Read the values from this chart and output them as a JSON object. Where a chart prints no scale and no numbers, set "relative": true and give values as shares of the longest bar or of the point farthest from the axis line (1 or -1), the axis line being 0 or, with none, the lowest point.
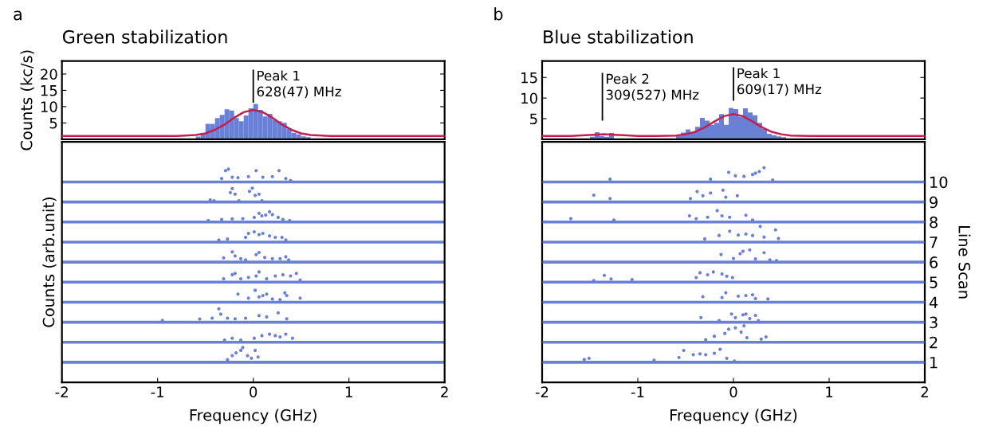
{
  "chart_data": [
    {
      "type": "histogram",
      "title": "Green stabilization",
      "ylabel": "Counts (kc/s)",
      "color": "#6a80d4",
      "bins": [
        -0.65,
        -0.6,
        -0.55,
        -0.5,
        -0.45,
        -0.4,
        -0.35,
        -0.3,
        -0.25,
        -0.2,
        -0.15,
        -0.1,
        -0.05,
        0,
        0.05,
        0.1,
        0.15,
        0.2,
        0.25,
        0.3,
        0.35,
        0.4,
        0.45,
        0.5,
        0.55,
        0.6
      ],
      "values": [
        null,
        0.8,
        1.8,
        4.7,
        4.7,
        6.5,
        7.5,
        9.2,
        8.8,
        6.5,
        5.5,
        7.3,
        9.5,
        10.8,
        9.0,
        7.0,
        7.8,
        6.0,
        5.5,
        5.0,
        3.2,
        2.0,
        1.5,
        0.9,
        0.6
      ],
      "series": [
        {
          "type": "line",
          "color": "#c41e52",
          "x": [
            -2,
            -1,
            -0.8,
            -0.6,
            -0.5,
            -0.4,
            -0.3,
            -0.2,
            -0.1,
            0,
            0.1,
            0.2,
            0.3,
            0.4,
            0.5,
            0.6,
            0.8,
            1,
            2
          ],
          "values": [
            1,
            1,
            1.0,
            1.3,
            1.8,
            2.9,
            4.5,
            6.6,
            8.3,
            9.0,
            8.3,
            6.6,
            4.5,
            2.9,
            1.8,
            1.3,
            1.0,
            1,
            1
          ]
        }
      ],
      "xlim": [
        -2,
        2
      ],
      "ylim": [
        0,
        24
      ],
      "yticks": [
        5,
        10,
        15,
        20
      ],
      "tick_labels": "y",
      "annotations": [
        "a",
        "Peak 1\n628(47) MHz"
      ]
    },
    {
      "type": "scatter",
      "xlabel": "Frequency (GHz)",
      "ylabel": "Counts (arb.unit)",
      "marker": "circle",
      "relative": true,
      "series": [
        {
          "color": "#6a80d4",
          "x": [
            -0.33,
            -0.29,
            -0.26,
            -0.22,
            -0.16,
            -0.05,
            0.03,
            0.1,
            0.2,
            0.27,
            0.34,
            0.39
          ],
          "values": [
            0.956,
            0.993,
            1,
            0.962,
            0.96,
            0.965,
            0.993,
            0.962,
            0.965,
            0.993,
            0.956,
            0.947
          ]
        },
        {
          "color": "#6a80d4",
          "x": [
            -0.45,
            -0.41,
            -0.24,
            -0.22,
            -0.19,
            -0.15,
            -0.04,
            -0.01,
            0.02,
            0.06,
            0.09
          ],
          "values": [
            0.856,
            0.852,
            0.89,
            0.909,
            0.883,
            0.852,
            0.896,
            0.911,
            0.877,
            0.883,
            0.852
          ]
        },
        {
          "color": "#6a80d4",
          "x": [
            -0.47,
            -0.33,
            -0.22,
            -0.11,
            0.01,
            0.06,
            0.09,
            0.13,
            0.17,
            0.2,
            0.26,
            0.31,
            0.38
          ],
          "values": [
            0.759,
            0.764,
            0.767,
            0.768,
            0.774,
            0.793,
            0.781,
            0.785,
            0.8,
            0.787,
            0.774,
            0.764,
            0.759
          ]
        },
        {
          "color": "#6a80d4",
          "x": [
            -0.36,
            -0.27,
            -0.08,
            -0.05,
            0.01,
            0.06,
            0.1,
            0.17,
            0.23,
            0.3,
            0.34
          ],
          "values": [
            0.668,
            0.672,
            0.68,
            0.699,
            0.706,
            0.693,
            0.699,
            0.687,
            0.68,
            0.68,
            0.668
          ]
        },
        {
          "color": "#6a80d4",
          "x": [
            -0.31,
            -0.22,
            -0.19,
            -0.13,
            -0.08,
            0.03,
            0.06,
            0.12,
            0.2,
            0.28,
            0.34,
            0.37
          ],
          "values": [
            0.584,
            0.612,
            0.593,
            0.58,
            0.574,
            0.599,
            0.609,
            0.586,
            0.58,
            0.58,
            0.589,
            0.574
          ]
        },
        {
          "color": "#6a80d4",
          "x": [
            -0.31,
            -0.22,
            -0.19,
            -0.13,
            -0.05,
            0.03,
            0.06,
            0.14,
            0.23,
            0.31,
            0.39,
            0.45,
            0.49
          ],
          "values": [
            0.486,
            0.505,
            0.511,
            0.486,
            0.492,
            0.499,
            0.518,
            0.486,
            0.499,
            0.505,
            0.499,
            0.511,
            0.48
          ]
        },
        {
          "color": "#6a80d4",
          "x": [
            -0.16,
            -0.05,
            0.02,
            0.06,
            0.1,
            0.14,
            0.2,
            0.28,
            0.33,
            0.35,
            0.49
          ],
          "values": [
            0.414,
            0.395,
            0.432,
            0.401,
            0.407,
            0.414,
            0.391,
            0.388,
            0.42,
            0.407,
            0.395
          ]
        },
        {
          "color": "#6a80d4",
          "x": [
            -0.95,
            -0.56,
            -0.43,
            -0.36,
            -0.34,
            -0.27,
            -0.19,
            -0.08,
            0.06,
            0.14,
            0.26,
            0.35
          ],
          "values": [
            0.29,
            0.297,
            0.301,
            0.345,
            0.32,
            0.301,
            0.298,
            0.301,
            0.313,
            0.307,
            0.326,
            0.298
          ]
        },
        {
          "color": "#6a80d4",
          "x": [
            -0.3,
            -0.22,
            -0.13,
            0.01,
            0.09,
            0.17,
            0.23,
            0.28,
            0.34,
            0.41
          ],
          "values": [
            0.198,
            0.207,
            0.198,
            0.207,
            0.219,
            0.226,
            0.219,
            0.213,
            0.226,
            0.207
          ]
        },
        {
          "color": "#6a80d4",
          "x": [
            -0.27,
            -0.22,
            -0.18,
            -0.13,
            -0.11,
            -0.06,
            -0.02,
            0.02,
            0.05
          ],
          "values": [
            0.106,
            0.125,
            0.138,
            0.15,
            0.163,
            0.125,
            0.113,
            0.15,
            0.119
          ]
        }
      ],
      "ref_lines": [
        {
          "axis": "y",
          "value": 0.94,
          "color": "#6a80d4"
        },
        {
          "axis": "y",
          "value": 0.846,
          "color": "#6a80d4"
        },
        {
          "axis": "y",
          "value": 0.752,
          "color": "#6a80d4"
        },
        {
          "axis": "y",
          "value": 0.658,
          "color": "#6a80d4"
        },
        {
          "axis": "y",
          "value": 0.564,
          "color": "#6a80d4"
        },
        {
          "axis": "y",
          "value": 0.47,
          "color": "#6a80d4"
        },
        {
          "axis": "y",
          "value": 0.376,
          "color": "#6a80d4"
        },
        {
          "axis": "y",
          "value": 0.282,
          "color": "#6a80d4"
        },
        {
          "axis": "y",
          "value": 0.188,
          "color": "#6a80d4"
        },
        {
          "axis": "y",
          "value": 0.094,
          "color": "#6a80d4"
        }
      ],
      "xlim": [
        -2,
        2
      ],
      "xticks": [
        -2,
        -1,
        0,
        1,
        2
      ]
    },
    {
      "type": "histogram",
      "title": "Blue stabilization",
      "color": "#6a80d4",
      "bins": [
        -1.5,
        -1.45,
        -1.4,
        -1.35,
        -1.3,
        -1.25,
        -1.2,
        -1.15,
        -1.1,
        -1.05,
        -1.0,
        -0.95,
        -0.9,
        -0.85,
        -0.8,
        -0.75,
        -0.7,
        -0.65,
        -0.6,
        -0.55,
        -0.5,
        -0.45,
        -0.4,
        -0.35,
        -0.3,
        -0.25,
        -0.2,
        -0.15,
        -0.1,
        -0.05,
        0,
        0.05,
        0.1,
        0.15,
        0.2,
        0.25,
        0.3,
        0.35,
        0.4,
        0.45,
        0.5,
        0.55
      ],
      "values": [
        0.6,
        1.7,
        0.8,
        0.6,
        1.5,
        null,
        null,
        null,
        null,
        null,
        null,
        null,
        null,
        null,
        null,
        null,
        null,
        null,
        0.8,
        1.6,
        2.4,
        1.5,
        3.0,
        5.2,
        4.5,
        3.5,
        4.0,
        6.1,
        3.5,
        7.6,
        7.3,
        5.5,
        7.5,
        6.5,
        5.8,
        4.0,
        2.5,
        1.3,
        1.0,
        0.7,
        0.5
      ],
      "series": [
        {
          "type": "line",
          "color": "#c41e52",
          "x": [
            -2,
            -1.7,
            -1.55,
            -1.45,
            -1.35,
            -1.25,
            -1.15,
            -1.0,
            -0.8,
            -0.6,
            -0.5,
            -0.4,
            -0.3,
            -0.2,
            -0.1,
            0,
            0.1,
            0.2,
            0.3,
            0.4,
            0.5,
            0.6,
            0.8,
            2
          ],
          "values": [
            0.8,
            0.8,
            1.0,
            1.1,
            1.2,
            1.1,
            1.0,
            0.8,
            0.8,
            0.9,
            1.2,
            1.8,
            2.9,
            4.3,
            5.6,
            6.1,
            5.6,
            4.3,
            2.9,
            1.8,
            1.2,
            0.9,
            0.8,
            0.8
          ]
        }
      ],
      "xlim": [
        -2,
        2
      ],
      "ylim": [
        0,
        19
      ],
      "yticks": [
        5,
        10,
        15
      ],
      "tick_labels": "y",
      "annotations": [
        "b",
        "Peak 2\n309(527) MHz",
        "Peak 1\n609(17) MHz"
      ]
    },
    {
      "type": "scatter",
      "xlabel": "Frequency (GHz)",
      "y2label": "Line Scan",
      "marker": "circle",
      "series": [
        {
          "axis": "y2",
          "color": "#6a80d4",
          "x": [
            -1.29,
            -0.24,
            -0.05,
            0.02,
            0.11,
            0.2,
            0.23,
            0.27,
            0.32,
            0.41
          ],
          "values": [
            10.14,
            10.14,
            10.48,
            10.31,
            10.28,
            10.37,
            10.44,
            10.52,
            10.71,
            10.1
          ]
        },
        {
          "axis": "y2",
          "color": "#6a80d4",
          "x": [
            -1.46,
            -1.29,
            -0.45,
            -0.38,
            -0.32,
            -0.24,
            -0.11,
            -0.08,
            0.04
          ],
          "values": [
            9.34,
            9.17,
            9.17,
            9.52,
            9.31,
            9.45,
            9.59,
            9.24,
            9.31
          ]
        },
        {
          "axis": "y2",
          "color": "#6a80d4",
          "x": [
            -1.7,
            -1.25,
            -0.46,
            -0.39,
            -0.27,
            -0.17,
            -0.12,
            -0.04,
            0.13,
            0.2
          ],
          "values": [
            8.17,
            8.1,
            8.31,
            8.17,
            8.24,
            8.57,
            8.31,
            8.24,
            8.34,
            8.1
          ]
        },
        {
          "axis": "y2",
          "color": "#6a80d4",
          "x": [
            -0.3,
            -0.15,
            -0.04,
            0.05,
            0.13,
            0.2,
            0.28,
            0.32,
            0.44,
            0.47
          ],
          "values": [
            7.16,
            7.33,
            7.54,
            7.35,
            7.4,
            7.33,
            7.78,
            7.25,
            7.61,
            7.18
          ]
        },
        {
          "axis": "y2",
          "color": "#6a80d4",
          "x": [
            -0.13,
            0,
            0.07,
            0.1,
            0.17,
            0.23,
            0.32,
            0.38,
            0.45
          ],
          "values": [
            6.38,
            6.18,
            6.42,
            6.54,
            6.61,
            6.16,
            6.47,
            6.11,
            6.08
          ]
        },
        {
          "axis": "y2",
          "color": "#6a80d4",
          "x": [
            -1.46,
            -1.35,
            -1.28,
            -1.06,
            -0.39,
            -0.35,
            -0.27,
            -0.21,
            -0.12,
            -0.07,
            -0.01
          ],
          "values": [
            5.08,
            5.34,
            5.16,
            5.13,
            5.23,
            5.47,
            5.37,
            5.51,
            5.41,
            5.3,
            5.23
          ]
        },
        {
          "axis": "y2",
          "color": "#6a80d4",
          "x": [
            -0.32,
            -0.12,
            -0.08,
            0.05,
            0.13,
            0.2,
            0.23,
            0.36
          ],
          "values": [
            4.27,
            4.23,
            4.47,
            4.3,
            4.33,
            4.37,
            4.18,
            4.16
          ]
        },
        {
          "axis": "y2",
          "color": "#6a80d4",
          "x": [
            -0.34,
            -0.15,
            -0.02,
            0.02,
            0.1,
            0.13,
            0.17,
            0.23,
            0.26
          ],
          "values": [
            3.23,
            3.08,
            3.41,
            3.23,
            3.37,
            3.41,
            3.18,
            3.34,
            3.08
          ]
        },
        {
          "axis": "y2",
          "color": "#6a80d4",
          "x": [
            -0.29,
            -0.2,
            -0.09,
            -0.05,
            0.02,
            0.08,
            0.11,
            0.14,
            0.29,
            0.34
          ],
          "values": [
            2.13,
            2.3,
            2.44,
            2.65,
            2.72,
            2.51,
            2.82,
            2.23,
            2.16,
            2.27
          ]
        },
        {
          "axis": "y2",
          "color": "#6a80d4",
          "x": [
            -1.56,
            -1.51,
            -0.83,
            -0.57,
            -0.52,
            -0.42,
            -0.35,
            -0.29,
            -0.2,
            -0.14,
            -0.07,
            0.01
          ],
          "values": [
            1.14,
            1.2,
            1.1,
            1.24,
            1.59,
            1.38,
            1.42,
            1.38,
            1.45,
            1.65,
            1.2,
            1.06
          ]
        }
      ],
      "ref_lines": [
        {
          "axis": "y2",
          "value": 10,
          "color": "#6a80d4"
        },
        {
          "axis": "y2",
          "value": 9,
          "color": "#6a80d4"
        },
        {
          "axis": "y2",
          "value": 8,
          "color": "#6a80d4"
        },
        {
          "axis": "y2",
          "value": 7,
          "color": "#6a80d4"
        },
        {
          "axis": "y2",
          "value": 6,
          "color": "#6a80d4"
        },
        {
          "axis": "y2",
          "value": 5,
          "color": "#6a80d4"
        },
        {
          "axis": "y2",
          "value": 4,
          "color": "#6a80d4"
        },
        {
          "axis": "y2",
          "value": 3,
          "color": "#6a80d4"
        },
        {
          "axis": "y2",
          "value": 2,
          "color": "#6a80d4"
        },
        {
          "axis": "y2",
          "value": 1,
          "color": "#6a80d4"
        }
      ],
      "xlim": [
        -2,
        2
      ],
      "xticks": [
        -2,
        -1,
        0,
        1,
        2
      ],
      "y2lim": [
        0,
        12
      ],
      "y2ticks": [
        1,
        2,
        3,
        4,
        5,
        6,
        7,
        8,
        9,
        10
      ]
    }
  ]
}
